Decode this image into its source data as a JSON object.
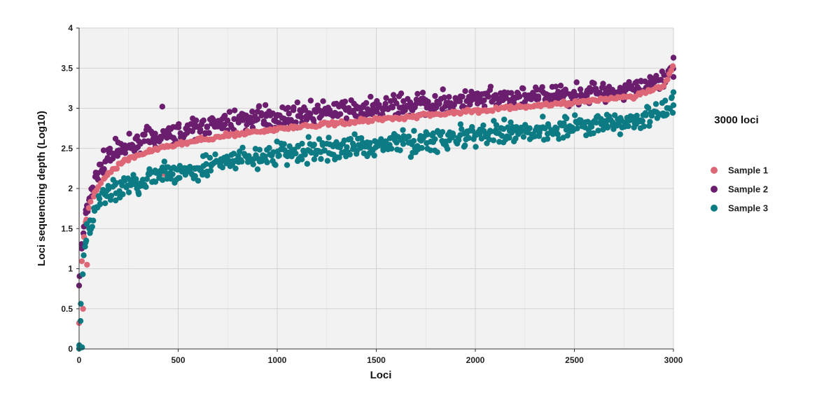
{
  "chart_data": {
    "type": "scatter",
    "xlabel": "Loci",
    "ylabel": "Loci sequencing depth (Log10)",
    "xlim": [
      0,
      3000
    ],
    "ylim": [
      0,
      4
    ],
    "xticks": [
      "0",
      "500",
      "1000",
      "1500",
      "2000",
      "2500",
      "3000"
    ],
    "yticks": [
      "0",
      "0.5",
      "1",
      "1.5",
      "2",
      "2.5",
      "3",
      "3.5",
      "4"
    ],
    "grid": true,
    "legend_title": "3000 loci",
    "legend_position": "right",
    "point_spacing": 10,
    "series": [
      {
        "name": "Sample 1",
        "color": "#DE6777",
        "spread": 0.025,
        "curve": [
          [
            0,
            0.3
          ],
          [
            10,
            0.95
          ],
          [
            20,
            1.3
          ],
          [
            35,
            1.6
          ],
          [
            60,
            1.85
          ],
          [
            100,
            2.05
          ],
          [
            150,
            2.2
          ],
          [
            250,
            2.38
          ],
          [
            400,
            2.5
          ],
          [
            600,
            2.6
          ],
          [
            800,
            2.68
          ],
          [
            1000,
            2.74
          ],
          [
            1500,
            2.86
          ],
          [
            2000,
            2.97
          ],
          [
            2500,
            3.07
          ],
          [
            2800,
            3.15
          ],
          [
            2950,
            3.28
          ],
          [
            3000,
            3.52
          ]
        ],
        "outliers": [
          [
            20,
            0.5
          ],
          [
            40,
            1.05
          ],
          [
            430,
            2.18
          ]
        ]
      },
      {
        "name": "Sample 2",
        "color": "#6B1E6E",
        "spread": 0.13,
        "curve": [
          [
            0,
            0.8
          ],
          [
            10,
            1.2
          ],
          [
            25,
            1.55
          ],
          [
            50,
            1.9
          ],
          [
            100,
            2.25
          ],
          [
            150,
            2.4
          ],
          [
            250,
            2.55
          ],
          [
            400,
            2.65
          ],
          [
            600,
            2.75
          ],
          [
            800,
            2.85
          ],
          [
            1000,
            2.9
          ],
          [
            1500,
            3.0
          ],
          [
            2000,
            3.1
          ],
          [
            2500,
            3.17
          ],
          [
            2800,
            3.25
          ],
          [
            2950,
            3.33
          ],
          [
            3000,
            3.45
          ]
        ],
        "outliers": [
          [
            420,
            3.02
          ],
          [
            3000,
            3.63
          ]
        ]
      },
      {
        "name": "Sample 3",
        "color": "#0D7B84",
        "spread": 0.14,
        "curve": [
          [
            0,
            0.05
          ],
          [
            10,
            0.6
          ],
          [
            20,
            1.0
          ],
          [
            40,
            1.4
          ],
          [
            70,
            1.65
          ],
          [
            100,
            1.85
          ],
          [
            150,
            1.95
          ],
          [
            250,
            2.05
          ],
          [
            400,
            2.15
          ],
          [
            600,
            2.25
          ],
          [
            800,
            2.35
          ],
          [
            1000,
            2.42
          ],
          [
            1500,
            2.55
          ],
          [
            2000,
            2.65
          ],
          [
            2500,
            2.78
          ],
          [
            2800,
            2.85
          ],
          [
            2950,
            2.95
          ],
          [
            3000,
            3.05
          ]
        ],
        "outliers": [
          [
            15,
            0.02
          ],
          [
            3000,
            3.2
          ]
        ]
      }
    ]
  }
}
